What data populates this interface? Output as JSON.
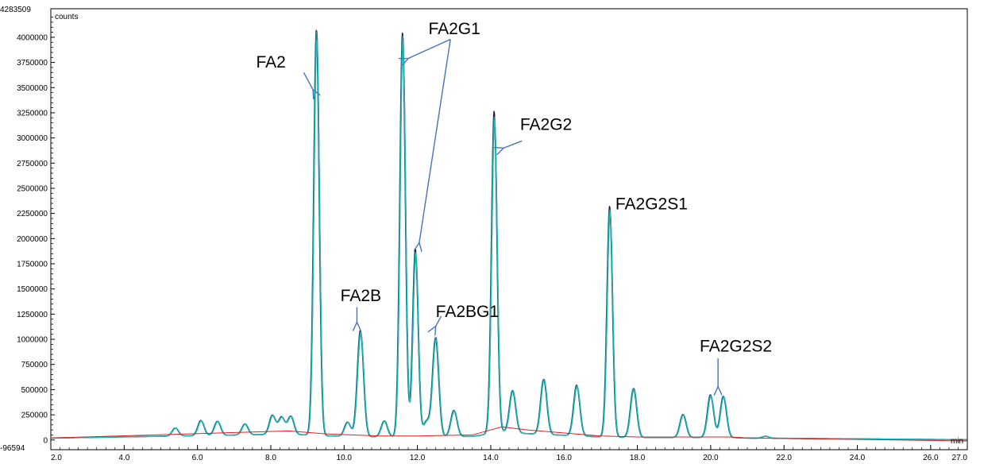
{
  "chart_data": {
    "type": "line",
    "y_unit": "counts",
    "x_unit": "min",
    "xlim": [
      2.0,
      27.0
    ],
    "ylim": [
      -96594,
      4283509
    ],
    "y_top_label": "4283509",
    "y_bottom_label": "-96594",
    "x_ticks": [
      "2.0",
      "4.0",
      "6.0",
      "8.0",
      "10.0",
      "12.0",
      "14.0",
      "16.0",
      "18.0",
      "20.0",
      "22.0",
      "24.0",
      "26.0",
      "27.0"
    ],
    "x_tick_values": [
      2,
      4,
      6,
      8,
      10,
      12,
      14,
      16,
      18,
      20,
      22,
      24,
      26,
      27
    ],
    "y_ticks": [
      "4000000",
      "3750000",
      "3500000",
      "3250000",
      "3000000",
      "2750000",
      "2500000",
      "2250000",
      "2000000",
      "1750000",
      "1500000",
      "1250000",
      "1000000",
      "750000",
      "500000",
      "250000",
      "0"
    ],
    "y_tick_values": [
      4000000,
      3750000,
      3500000,
      3250000,
      3000000,
      2750000,
      2500000,
      2250000,
      2000000,
      1750000,
      1500000,
      1250000,
      1000000,
      750000,
      500000,
      250000,
      0
    ],
    "colors": {
      "trace_main": "#1f8f8f",
      "trace_dark": "#1a1a40",
      "trace_violet": "#8a2be2",
      "trace_cyan": "#10c8c8",
      "baseline": "#e02020",
      "arrow": "#4472c4"
    },
    "baseline_points": [
      {
        "x": 2.0,
        "y": 20000
      },
      {
        "x": 8.5,
        "y": 90000
      },
      {
        "x": 9.5,
        "y": 60000
      },
      {
        "x": 11.0,
        "y": 40000
      },
      {
        "x": 12.0,
        "y": 40000
      },
      {
        "x": 13.5,
        "y": 50000
      },
      {
        "x": 14.3,
        "y": 130000
      },
      {
        "x": 15.0,
        "y": 100000
      },
      {
        "x": 17.0,
        "y": 40000
      },
      {
        "x": 18.0,
        "y": 30000
      },
      {
        "x": 20.5,
        "y": 30000
      },
      {
        "x": 21.0,
        "y": 20000
      },
      {
        "x": 27.0,
        "y": -10000
      }
    ],
    "peaks": [
      {
        "x": 5.4,
        "y": 80000
      },
      {
        "x": 6.1,
        "y": 150000
      },
      {
        "x": 6.55,
        "y": 140000
      },
      {
        "x": 7.3,
        "y": 110000
      },
      {
        "x": 8.05,
        "y": 190000
      },
      {
        "x": 8.3,
        "y": 170000
      },
      {
        "x": 8.55,
        "y": 180000
      },
      {
        "x": 9.25,
        "y": 4050000
      },
      {
        "x": 10.1,
        "y": 140000
      },
      {
        "x": 10.45,
        "y": 1050000
      },
      {
        "x": 11.1,
        "y": 160000
      },
      {
        "x": 11.6,
        "y": 4020000
      },
      {
        "x": 11.95,
        "y": 1850000
      },
      {
        "x": 12.25,
        "y": 150000
      },
      {
        "x": 12.5,
        "y": 990000
      },
      {
        "x": 13.0,
        "y": 260000
      },
      {
        "x": 14.1,
        "y": 3170000
      },
      {
        "x": 14.6,
        "y": 420000
      },
      {
        "x": 15.45,
        "y": 550000
      },
      {
        "x": 16.35,
        "y": 500000
      },
      {
        "x": 17.25,
        "y": 2280000
      },
      {
        "x": 17.9,
        "y": 490000
      },
      {
        "x": 19.25,
        "y": 230000
      },
      {
        "x": 20.0,
        "y": 420000
      },
      {
        "x": 20.35,
        "y": 410000
      },
      {
        "x": 21.5,
        "y": 20000
      }
    ],
    "annotations": [
      {
        "text": "FA2",
        "label_x": 7.6,
        "label_y": 3700000,
        "arrows": [
          {
            "from_x": 8.9,
            "from_y": 3650000,
            "to_x": 9.15,
            "to_y": 3480000
          }
        ]
      },
      {
        "text": "FA2G1",
        "label_x": 12.3,
        "label_y": 4030000,
        "arrows": [
          {
            "from_x": 12.9,
            "from_y": 3980000,
            "to_x": 11.75,
            "to_y": 3790000
          },
          {
            "from_x": 12.9,
            "from_y": 3980000,
            "to_x": 12.05,
            "to_y": 1960000
          }
        ]
      },
      {
        "text": "FA2B",
        "label_x": 9.9,
        "label_y": 1380000,
        "arrows": [
          {
            "from_x": 10.35,
            "from_y": 1320000,
            "to_x": 10.35,
            "to_y": 1170000
          }
        ]
      },
      {
        "text": "FA2BG1",
        "label_x": 12.5,
        "label_y": 1220000,
        "arrows": [
          {
            "from_x": 12.65,
            "from_y": 1230000,
            "to_x": 12.5,
            "to_y": 1130000
          }
        ]
      },
      {
        "text": "FA2G2",
        "label_x": 14.8,
        "label_y": 3080000,
        "arrows": [
          {
            "from_x": 14.85,
            "from_y": 2970000,
            "to_x": 14.35,
            "to_y": 2900000
          }
        ]
      },
      {
        "text": "FA2G2S1",
        "label_x": 17.4,
        "label_y": 2290000,
        "arrows": []
      },
      {
        "text": "FA2G2S2",
        "label_x": 19.7,
        "label_y": 880000,
        "arrows": [
          {
            "from_x": 20.2,
            "from_y": 810000,
            "to_x": 20.2,
            "to_y": 530000
          }
        ]
      }
    ]
  }
}
